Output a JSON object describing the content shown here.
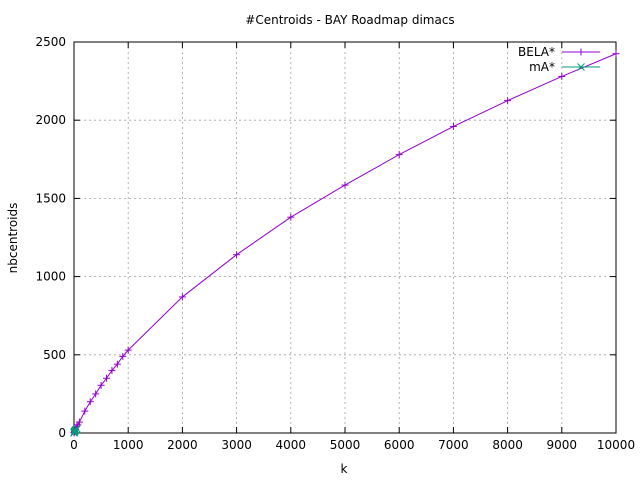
{
  "chart_data": {
    "type": "line",
    "title": "#Centroids - BAY Roadmap dimacs",
    "xlabel": "k",
    "ylabel": "nbcentroids",
    "xlim": [
      0,
      10000
    ],
    "ylim": [
      0,
      2500
    ],
    "xticks": [
      0,
      1000,
      2000,
      3000,
      4000,
      5000,
      6000,
      7000,
      8000,
      9000,
      10000
    ],
    "yticks": [
      0,
      500,
      1000,
      1500,
      2000,
      2500
    ],
    "grid": true,
    "legend_position": "top-right",
    "series": [
      {
        "name": "BELA*",
        "color": "#9400d3",
        "marker": "plus",
        "x": [
          1,
          5,
          10,
          20,
          30,
          50,
          70,
          100,
          200,
          300,
          400,
          500,
          600,
          700,
          800,
          900,
          1000,
          2000,
          3000,
          4000,
          5000,
          6000,
          7000,
          8000,
          9000,
          10000
        ],
        "y": [
          1,
          5,
          10,
          18,
          25,
          40,
          52,
          70,
          140,
          200,
          250,
          305,
          350,
          400,
          440,
          490,
          530,
          870,
          1140,
          1380,
          1585,
          1780,
          1960,
          2125,
          2280,
          2425
        ]
      },
      {
        "name": "mA*",
        "color": "#009e73",
        "marker": "cross",
        "x": [
          1,
          5,
          10,
          20,
          30,
          50
        ],
        "y": [
          1,
          5,
          9,
          15,
          20,
          28
        ]
      }
    ]
  }
}
